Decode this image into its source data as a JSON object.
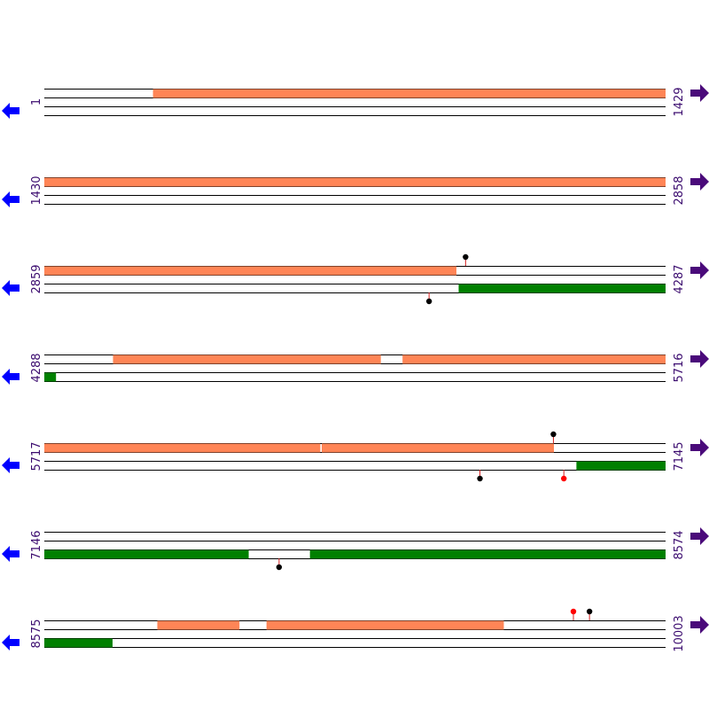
{
  "colors": {
    "forward_orf": "#ff8556",
    "reverse_orf": "#008000",
    "line": "#000000",
    "stem": "#d62020",
    "marker_black": "#000000",
    "marker_red": "#ff0000",
    "arrow_left": "#0000ff",
    "arrow_right": "#4a0a7a",
    "label": "#3a0a6e"
  },
  "icons": {
    "left_arrow": "left-arrow-icon",
    "right_arrow": "right-arrow-icon"
  },
  "chart_data": {
    "type": "genome-map",
    "rows": [
      {
        "start": 1,
        "end": 1429,
        "forward_frames": [
          {
            "frame": 1,
            "features": [
              {
                "start": 251,
                "end": 1429
              }
            ]
          },
          {
            "frame": 2,
            "features": []
          },
          {
            "frame": 3,
            "features": []
          }
        ],
        "reverse_frames": [
          {
            "frame": 1,
            "features": []
          },
          {
            "frame": 2,
            "features": []
          },
          {
            "frame": 3,
            "features": []
          }
        ],
        "markers": []
      },
      {
        "start": 1430,
        "end": 2858,
        "forward_frames": [
          {
            "frame": 1,
            "features": []
          },
          {
            "frame": 2,
            "features": [
              {
                "start": 1430,
                "end": 2858
              }
            ]
          },
          {
            "frame": 3,
            "features": []
          }
        ],
        "reverse_frames": [
          {
            "frame": 1,
            "features": []
          },
          {
            "frame": 2,
            "features": []
          },
          {
            "frame": 3,
            "features": []
          }
        ],
        "markers": []
      },
      {
        "start": 2859,
        "end": 4287,
        "forward_frames": [
          {
            "frame": 1,
            "features": []
          },
          {
            "frame": 2,
            "features": [
              {
                "start": 2859,
                "end": 3806
              }
            ]
          },
          {
            "frame": 3,
            "features": []
          }
        ],
        "reverse_frames": [
          {
            "frame": 1,
            "features": [
              {
                "start": 3812,
                "end": 4287
              }
            ]
          },
          {
            "frame": 2,
            "features": []
          },
          {
            "frame": 3,
            "features": []
          }
        ],
        "markers": [
          {
            "position": 3828,
            "frame": "forward-2",
            "side": "above",
            "color": "black"
          },
          {
            "position": 3744,
            "frame": "reverse-2",
            "side": "below",
            "color": "black"
          }
        ]
      },
      {
        "start": 4288,
        "end": 5716,
        "forward_frames": [
          {
            "frame": 1,
            "features": []
          },
          {
            "frame": 2,
            "features": [
              {
                "start": 4446,
                "end": 5061
              },
              {
                "start": 5112,
                "end": 5716
              }
            ]
          },
          {
            "frame": 3,
            "features": []
          }
        ],
        "reverse_frames": [
          {
            "frame": 1,
            "features": []
          },
          {
            "frame": 2,
            "features": [
              {
                "start": 4288,
                "end": 4314
              }
            ]
          },
          {
            "frame": 3,
            "features": []
          }
        ],
        "markers": []
      },
      {
        "start": 5717,
        "end": 7145,
        "forward_frames": [
          {
            "frame": 1,
            "features": []
          },
          {
            "frame": 2,
            "features": [
              {
                "start": 5717,
                "end": 6351
              },
              {
                "start": 6355,
                "end": 6888
              }
            ]
          },
          {
            "frame": 3,
            "features": []
          }
        ],
        "reverse_frames": [
          {
            "frame": 1,
            "features": [
              {
                "start": 6941,
                "end": 7145
              }
            ]
          },
          {
            "frame": 2,
            "features": []
          },
          {
            "frame": 3,
            "features": []
          }
        ],
        "markers": [
          {
            "position": 6888,
            "frame": "forward-2",
            "side": "above",
            "color": "black"
          },
          {
            "position": 6719,
            "frame": "reverse-1",
            "side": "below",
            "color": "black"
          },
          {
            "position": 6912,
            "frame": "reverse-1",
            "side": "below",
            "color": "red"
          }
        ]
      },
      {
        "start": 7146,
        "end": 8574,
        "forward_frames": [
          {
            "frame": 1,
            "features": []
          },
          {
            "frame": 2,
            "features": []
          },
          {
            "frame": 3,
            "features": []
          }
        ],
        "reverse_frames": [
          {
            "frame": 1,
            "features": [
              {
                "start": 7146,
                "end": 7615
              },
              {
                "start": 7757,
                "end": 8574
              }
            ]
          },
          {
            "frame": 2,
            "features": []
          },
          {
            "frame": 3,
            "features": []
          }
        ],
        "markers": [
          {
            "position": 7686,
            "frame": "reverse-1",
            "side": "below",
            "color": "black"
          }
        ]
      },
      {
        "start": 8575,
        "end": 10003,
        "forward_frames": [
          {
            "frame": 1,
            "features": []
          },
          {
            "frame": 2,
            "features": [
              {
                "start": 8835,
                "end": 9023
              },
              {
                "start": 9086,
                "end": 9631
              }
            ]
          },
          {
            "frame": 3,
            "features": []
          }
        ],
        "reverse_frames": [
          {
            "frame": 1,
            "features": []
          },
          {
            "frame": 2,
            "features": [
              {
                "start": 8575,
                "end": 8731
              }
            ]
          },
          {
            "frame": 3,
            "features": []
          }
        ],
        "markers": [
          {
            "position": 9792,
            "frame": "forward-1",
            "side": "above",
            "color": "red"
          },
          {
            "position": 9829,
            "frame": "forward-1",
            "side": "above",
            "color": "black"
          }
        ]
      }
    ]
  }
}
